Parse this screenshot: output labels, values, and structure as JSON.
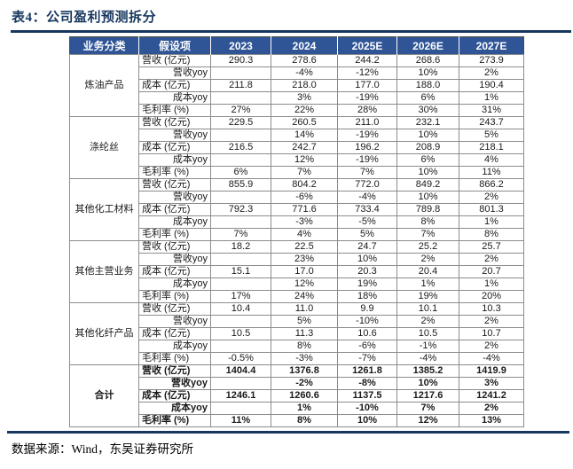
{
  "title": "表4：公司盈利预测拆分",
  "source": "数据来源：Wind，东吴证券研究所",
  "colors": {
    "header_bg": "#2F5597",
    "title_ink": "#17375E",
    "grid_line": "#8C8C8C"
  },
  "table": {
    "headers": [
      "业务分类",
      "假设项",
      "2023",
      "2024",
      "2025E",
      "2026E",
      "2027E"
    ],
    "groups": [
      {
        "category": "炼油产品",
        "bold": false,
        "rows": [
          {
            "label": "营收 (亿元)",
            "align": "left",
            "values": [
              "290.3",
              "278.6",
              "244.2",
              "268.6",
              "273.9"
            ]
          },
          {
            "label": "营收yoy",
            "align": "right",
            "values": [
              "",
              "-4%",
              "-12%",
              "10%",
              "2%"
            ]
          },
          {
            "label": "成本 (亿元)",
            "align": "left",
            "values": [
              "211.8",
              "218.0",
              "177.0",
              "188.0",
              "190.4"
            ]
          },
          {
            "label": "成本yoy",
            "align": "right",
            "values": [
              "",
              "3%",
              "-19%",
              "6%",
              "1%"
            ]
          },
          {
            "label": "毛利率 (%)",
            "align": "left",
            "values": [
              "27%",
              "22%",
              "28%",
              "30%",
              "31%"
            ]
          }
        ]
      },
      {
        "category": "涤纶丝",
        "bold": false,
        "rows": [
          {
            "label": "营收 (亿元)",
            "align": "left",
            "values": [
              "229.5",
              "260.5",
              "211.0",
              "232.1",
              "243.7"
            ]
          },
          {
            "label": "营收yoy",
            "align": "right",
            "values": [
              "",
              "14%",
              "-19%",
              "10%",
              "5%"
            ]
          },
          {
            "label": "成本 (亿元)",
            "align": "left",
            "values": [
              "216.5",
              "242.7",
              "196.2",
              "208.9",
              "218.1"
            ]
          },
          {
            "label": "成本yoy",
            "align": "right",
            "values": [
              "",
              "12%",
              "-19%",
              "6%",
              "4%"
            ]
          },
          {
            "label": "毛利率 (%)",
            "align": "left",
            "values": [
              "6%",
              "7%",
              "7%",
              "10%",
              "11%"
            ]
          }
        ]
      },
      {
        "category": "其他化工材料",
        "bold": false,
        "rows": [
          {
            "label": "营收 (亿元)",
            "align": "left",
            "values": [
              "855.9",
              "804.2",
              "772.0",
              "849.2",
              "866.2"
            ]
          },
          {
            "label": "营收yoy",
            "align": "right",
            "values": [
              "",
              "-6%",
              "-4%",
              "10%",
              "2%"
            ]
          },
          {
            "label": "成本 (亿元)",
            "align": "left",
            "values": [
              "792.3",
              "771.6",
              "733.4",
              "789.8",
              "801.3"
            ]
          },
          {
            "label": "成本yoy",
            "align": "right",
            "values": [
              "",
              "-3%",
              "-5%",
              "8%",
              "1%"
            ]
          },
          {
            "label": "毛利率 (%)",
            "align": "left",
            "values": [
              "7%",
              "4%",
              "5%",
              "7%",
              "8%"
            ]
          }
        ]
      },
      {
        "category": "其他主营业务",
        "bold": false,
        "rows": [
          {
            "label": "营收 (亿元)",
            "align": "left",
            "values": [
              "18.2",
              "22.5",
              "24.7",
              "25.2",
              "25.7"
            ]
          },
          {
            "label": "营收yoy",
            "align": "right",
            "values": [
              "",
              "23%",
              "10%",
              "2%",
              "2%"
            ]
          },
          {
            "label": "成本 (亿元)",
            "align": "left",
            "values": [
              "15.1",
              "17.0",
              "20.3",
              "20.4",
              "20.7"
            ]
          },
          {
            "label": "成本yoy",
            "align": "right",
            "values": [
              "",
              "12%",
              "19%",
              "1%",
              "1%"
            ]
          },
          {
            "label": "毛利率 (%)",
            "align": "left",
            "values": [
              "17%",
              "24%",
              "18%",
              "19%",
              "20%"
            ]
          }
        ]
      },
      {
        "category": "其他化纤产品",
        "bold": false,
        "rows": [
          {
            "label": "营收 (亿元)",
            "align": "left",
            "values": [
              "10.4",
              "11.0",
              "9.9",
              "10.1",
              "10.3"
            ]
          },
          {
            "label": "营收yoy",
            "align": "right",
            "values": [
              "",
              "5%",
              "-10%",
              "2%",
              "2%"
            ]
          },
          {
            "label": "成本 (亿元)",
            "align": "left",
            "values": [
              "10.5",
              "11.3",
              "10.6",
              "10.5",
              "10.7"
            ]
          },
          {
            "label": "成本yoy",
            "align": "right",
            "values": [
              "",
              "8%",
              "-6%",
              "-1%",
              "2%"
            ]
          },
          {
            "label": "毛利率 (%)",
            "align": "left",
            "values": [
              "-0.5%",
              "-3%",
              "-7%",
              "-4%",
              "-4%"
            ]
          }
        ]
      },
      {
        "category": "合计",
        "bold": true,
        "rows": [
          {
            "label": "营收 (亿元)",
            "align": "left",
            "values": [
              "1404.4",
              "1376.8",
              "1261.8",
              "1385.2",
              "1419.9"
            ]
          },
          {
            "label": "营收yoy",
            "align": "right",
            "values": [
              "",
              "-2%",
              "-8%",
              "10%",
              "3%"
            ]
          },
          {
            "label": "成本 (亿元)",
            "align": "left",
            "values": [
              "1246.1",
              "1260.6",
              "1137.5",
              "1217.6",
              "1241.2"
            ]
          },
          {
            "label": "成本yoy",
            "align": "right",
            "values": [
              "",
              "1%",
              "-10%",
              "7%",
              "2%"
            ]
          },
          {
            "label": "毛利率 (%)",
            "align": "left",
            "values": [
              "11%",
              "8%",
              "10%",
              "12%",
              "13%"
            ]
          }
        ]
      }
    ]
  }
}
